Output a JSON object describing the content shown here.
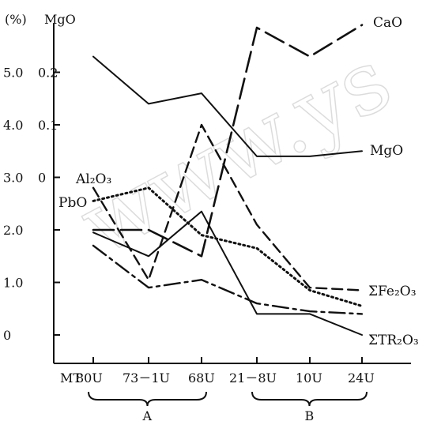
{
  "chart_data": {
    "type": "line",
    "units_label": "(%)",
    "secondary_axis_label": "MgO",
    "categories": [
      "MT80U",
      "73-1U",
      "68U",
      "21-8U",
      "10U",
      "24U"
    ],
    "category_labels": [
      "MT",
      "80U",
      "73－1U",
      "68U",
      "21－8U",
      "10U",
      "24U"
    ],
    "groups": [
      {
        "label": "A",
        "from": 0,
        "to": 2
      },
      {
        "label": "B",
        "from": 3,
        "to": 5
      }
    ],
    "y_ticks": [
      "5.0",
      "4.0",
      "3.0",
      "2.0",
      "1.0",
      "0"
    ],
    "y2_ticks": [
      "0.2",
      "0.1",
      "0"
    ],
    "ylim": [
      0,
      5.5
    ],
    "series": [
      {
        "name": "CaO",
        "style": "longdash",
        "values": [
          2.0,
          2.0,
          1.5,
          5.85,
          5.3,
          5.9
        ]
      },
      {
        "name": "MgO",
        "style": "solid",
        "values": [
          5.3,
          4.4,
          4.6,
          3.4,
          3.4,
          3.5
        ]
      },
      {
        "name": "Al₂O₃",
        "style": "solid",
        "values": [
          1.95,
          1.5,
          2.35,
          0.4,
          0.4,
          0.0
        ]
      },
      {
        "name": "PbO",
        "style": "dotted",
        "values": [
          2.55,
          2.8,
          1.9,
          1.65,
          0.85,
          0.55
        ]
      },
      {
        "name": "ΣFe₂O₃",
        "style": "dashed",
        "values": [
          2.8,
          1.05,
          4.0,
          2.1,
          0.9,
          0.85
        ]
      },
      {
        "name": "ΣTR₂O₃",
        "style": "dashdot",
        "values": [
          1.7,
          0.9,
          1.05,
          0.6,
          0.45,
          0.4
        ]
      }
    ],
    "watermark": "www.ys"
  }
}
